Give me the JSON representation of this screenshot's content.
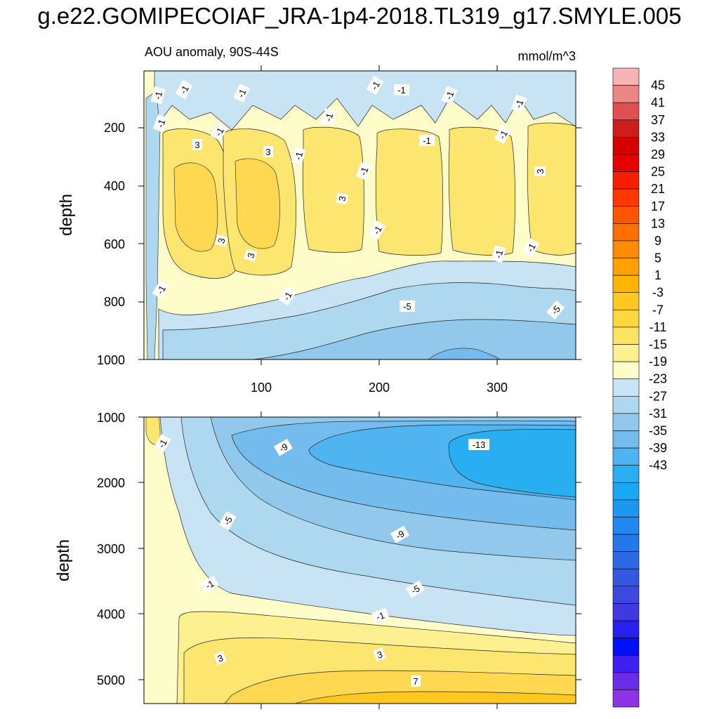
{
  "title": "g.e22.GOMIPECOIAF_JRA-1p4-2018.TL319_g17.SMYLE.005",
  "subtitle_left": "AOU anomaly, 90S-44S",
  "units": "mmol/m^3",
  "colorbar": {
    "labels": [
      "45",
      "41",
      "37",
      "33",
      "29",
      "25",
      "21",
      "17",
      "13",
      "9",
      "5",
      "1",
      "-3",
      "-7",
      "-11",
      "-15",
      "-19",
      "-23",
      "-27",
      "-31",
      "-35",
      "-39",
      "-43"
    ],
    "colors": [
      "#f7b4b4",
      "#ed8585",
      "#e05050",
      "#cf1c1c",
      "#d60000",
      "#e80000",
      "#fa1c00",
      "#ff3800",
      "#ff5500",
      "#ff7000",
      "#ff8c00",
      "#ffa200",
      "#ffb400",
      "#ffc820",
      "#ffd840",
      "#fde460",
      "#fdf090",
      "#fefcc8",
      "#c8e4f4",
      "#aed8f0",
      "#92c8ec",
      "#74bcee",
      "#50b4f0",
      "#2aaef2",
      "#18a8f4",
      "#1c98f0",
      "#2088ee",
      "#2478ea",
      "#2c68e6",
      "#3458e2",
      "#3c48de",
      "#4038e0",
      "#2820ee",
      "#0010f8",
      "#4020f0",
      "#6a2ce8",
      "#8c34e6"
    ]
  },
  "chart_data": [
    {
      "type": "heatmap",
      "panel": "upper",
      "ylabel": "depth",
      "ylim": [
        1000,
        30
      ],
      "xlim": [
        1,
        370
      ],
      "yticks": [
        "200",
        "400",
        "600",
        "800",
        "1000"
      ],
      "xticks": [
        "100",
        "200",
        "300"
      ],
      "contour_labels": [
        "-1",
        "-1",
        "-1",
        "-1",
        "-1",
        "-1",
        "-1",
        "-1",
        "-1",
        "-1",
        "-1",
        "-1",
        "-1",
        "-1",
        "3",
        "3",
        "3",
        "3",
        "3",
        "3",
        "-1",
        "-1",
        "-1",
        "-1",
        "-1",
        "-5",
        "-5"
      ]
    },
    {
      "type": "heatmap",
      "panel": "lower",
      "ylabel": "depth",
      "ylim": [
        5400,
        1000
      ],
      "xlim": [
        1,
        370
      ],
      "yticks": [
        "1000",
        "2000",
        "3000",
        "4000",
        "5000"
      ],
      "contour_labels": [
        "-1",
        "-9",
        "-13",
        "-5",
        "-9",
        "-1",
        "-5",
        "-1",
        "3",
        "3",
        "7"
      ]
    }
  ]
}
